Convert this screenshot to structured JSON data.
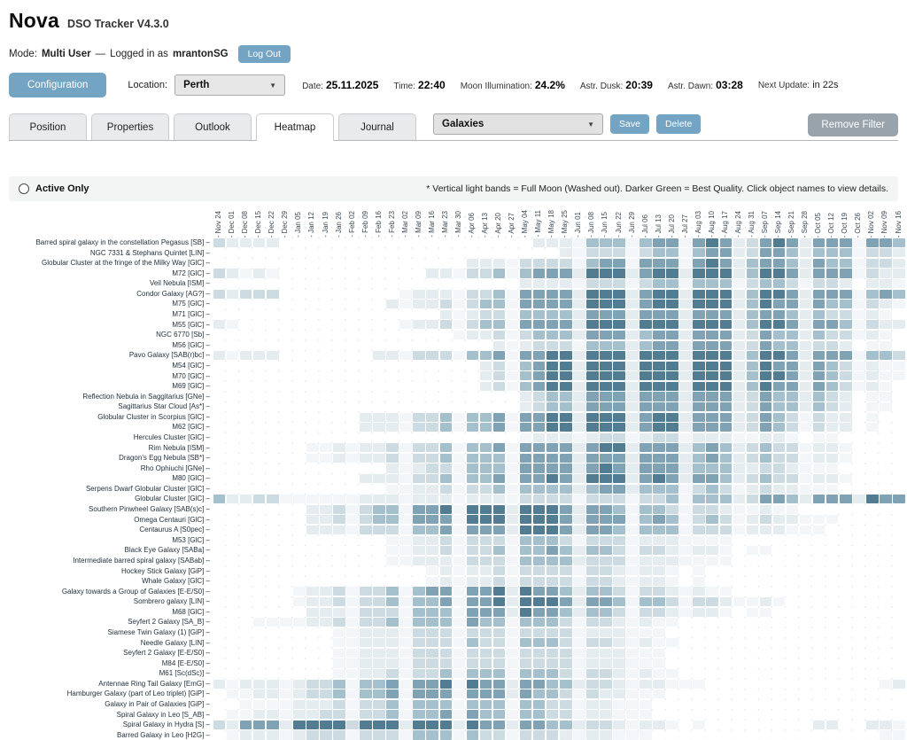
{
  "app": {
    "name": "Nova",
    "subtitle": "DSO Tracker V4.3.0"
  },
  "session": {
    "mode_label": "Mode:",
    "mode_value": "Multi User",
    "dash": "—",
    "logged_in_prefix": "Logged in as",
    "username": "mrantonSG",
    "logout_label": "Log Out"
  },
  "toolbar": {
    "configuration_label": "Configuration",
    "location_label": "Location:",
    "location_value": "Perth",
    "stats": [
      {
        "label": "Date:",
        "value": "25.11.2025",
        "bold": true
      },
      {
        "label": "Time:",
        "value": "22:40",
        "bold": true
      },
      {
        "label": "Moon Illumination:",
        "value": "24.2%",
        "bold": true
      },
      {
        "label": "Astr. Dusk:",
        "value": "20:39",
        "bold": true
      },
      {
        "label": "Astr. Dawn:",
        "value": "03:28",
        "bold": true
      },
      {
        "label": "Next Update:",
        "value": "in 22s",
        "bold": false
      }
    ]
  },
  "tabs": [
    {
      "label": "Position",
      "active": false
    },
    {
      "label": "Properties",
      "active": false
    },
    {
      "label": "Outlook",
      "active": false
    },
    {
      "label": "Heatmap",
      "active": true
    },
    {
      "label": "Journal",
      "active": false
    }
  ],
  "filter": {
    "preset_value": "Galaxies",
    "save_label": "Save",
    "delete_label": "Delete",
    "remove_filter_label": "Remove Filter"
  },
  "options_bar": {
    "active_only_label": "Active Only",
    "note": "* Vertical light bands = Full Moon (Washed out). Darker Green = Best Quality. Click object names to view details."
  },
  "chart_data": {
    "type": "heatmap",
    "value_scale": "0=not observable, 6=best quality (darkest green-blue); weekly columns Nov 2025 - Nov 2026; light vertical bands = full moon wash-out",
    "palette": {
      "0": "#ffffff",
      "1": "#f3f6f8",
      "2": "#e4ecf0",
      "3": "#ccdae2",
      "4": "#a5c0cd",
      "5": "#7fa3b5",
      "6": "#527c92"
    },
    "columns": [
      "Nov 24",
      "Dec 01",
      "Dec 08",
      "Dec 15",
      "Dec 22",
      "Dec 29",
      "Jan 05",
      "Jan 12",
      "Jan 19",
      "Jan 26",
      "Feb 02",
      "Feb 09",
      "Feb 16",
      "Feb 23",
      "Mar 02",
      "Mar 09",
      "Mar 16",
      "Mar 23",
      "Mar 30",
      "Apr 06",
      "Apr 13",
      "Apr 20",
      "Apr 27",
      "May 04",
      "May 11",
      "May 18",
      "May 25",
      "Jun 01",
      "Jun 08",
      "Jun 15",
      "Jun 22",
      "Jun 29",
      "Jul 06",
      "Jul 13",
      "Jul 20",
      "Jul 27",
      "Aug 03",
      "Aug 10",
      "Aug 17",
      "Aug 24",
      "Aug 31",
      "Sep 07",
      "Sep 14",
      "Sep 21",
      "Sep 28",
      "Oct 05",
      "Oct 12",
      "Oct 19",
      "Oct 26",
      "Nov 02",
      "Nov 09",
      "Nov 16"
    ],
    "rows": [
      {
        "label": "Barred spiral galaxy in the constellation Pegasus [SB]",
        "values": "3222200000000000000000002221444145515652356525551554"
      },
      {
        "label": "NGC 7331 & Stephans Quintet [LIN]",
        "values": "0000000000000000000000000021333134414552355424441332"
      },
      {
        "label": "Globular Cluster at the fringe of the Milky Way [GlC]",
        "values": "0000000000000000000222133331455155515652455425441332"
      },
      {
        "label": "M72 [GlC]",
        "values": "3212100000000000221334145552666256626662466525551322"
      },
      {
        "label": "Veil Nebula [ISM]",
        "values": "0000000000000000000000022221333134414441344313320221"
      },
      {
        "label": "Condor Galaxy [AG?]",
        "values": "3233300000000012221334155552666256626662466525551454"
      },
      {
        "label": "M75 [GlC]",
        "values": "0000000000000212231344155552666256626662465525441321"
      },
      {
        "label": "M71 [GlC]",
        "values": "0000000000000000021233144442555255525552455424331210"
      },
      {
        "label": "M55 [GlC]",
        "values": "2100000000000012231344155552666266626662466525541322"
      },
      {
        "label": "NGC 6770 [Sb]",
        "values": "0000000000000000001223134442555245525552354424331210"
      },
      {
        "label": "M56 [GlC]",
        "values": "0000000000000000000002123331444245525552354423320110"
      },
      {
        "label": "Pavo Galaxy [SAB(r)bc]",
        "values": "2122200000002213331445155662666266626662466525551443"
      },
      {
        "label": "M54 [GlC]",
        "values": "0000000000000000000023145662666266626662465525431211"
      },
      {
        "label": "M70 [GlC]",
        "values": "0000000000000000000023145662666266626662466525431211"
      },
      {
        "label": "M69 [GlC]",
        "values": "0000000000000000000023145662666266626662465525431210"
      },
      {
        "label": "Reflection Nebula in Saggitarius [GNe]",
        "values": "0000000000000000000000023442555255525552354424320110"
      },
      {
        "label": "Sagittarius Star Cloud [As*]",
        "values": "0000000000000000000000023442555255525552354424320110"
      },
      {
        "label": "Globular Cluster in Scorpius [GlC]",
        "values": "0000000000022213341445155662666256625552354313220100"
      },
      {
        "label": "M62 [GlC]",
        "values": "0000000000022213341445155662666256625552354313220100"
      },
      {
        "label": "Hercules Cluster [GlC]",
        "values": "0000000000000000000000012221233123312221122101100000"
      },
      {
        "label": "Rim Nebula [ISM]",
        "values": "0000000112122313341445155552566255524542343312210000"
      },
      {
        "label": "Dragon's Egg Nebula [SB*]",
        "values": "0000000112122313341444155552555255524542343312210000"
      },
      {
        "label": "Rho Ophiuchi [GNe]",
        "values": "0000000000000212331444155552565255524442233211100000"
      },
      {
        "label": "M80 [GlC]",
        "values": "0000000000022213341445155652666256525542343312210000"
      },
      {
        "label": "Serpens Dwarf Globular Cluster [GlC]",
        "values": "0000000000000112231334144442455244413431232211100000"
      },
      {
        "label": "Globular Cluster [GlC]",
        "values": "4223311111122212221222133331333133414442355425552655"
      },
      {
        "label": "Southern Pinwheel Galaxy [SAB(s)c]",
        "values": "0000000223134415561666266652554144313321121100000000"
      },
      {
        "label": "Omega Centauri [GlC]",
        "values": "0000000223134415551666266652555145413431232211100000"
      },
      {
        "label": "Centaurus A [S0pec]",
        "values": "0000000222133314451555266652554144413331222111000000"
      },
      {
        "label": "M53 [GlC]",
        "values": "0000000000000112231333144431333122211110000000000000"
      },
      {
        "label": "Black Eye Galaxy [SABa]",
        "values": "0000000000000112231334144542443133212210110000000000"
      },
      {
        "label": "Intermediate barred spiral galaxy [SABab]",
        "values": "0000000000000112221333144442333122211110000000000000"
      },
      {
        "label": "Hockey Stick Galaxy [GiP]",
        "values": "0000000000000000121223133331332122101000000000000000"
      },
      {
        "label": "Whale Galaxy [GlC]",
        "values": "0000000000000000121223133331332122101000000000000000"
      },
      {
        "label": "Galaxy towards a Group of Galaxies [E-E/S0]",
        "values": "0000001223133414551556265542443133212110000000000000"
      },
      {
        "label": "Sombrero galaxy [LIN]",
        "values": "0000001223133414451556266652554144313321121000000000"
      },
      {
        "label": "M68 [GlC]",
        "values": "0000000222133314441555265542443133212210110000000000"
      },
      {
        "label": "Seyfert 2 Galaxy [SA_B]",
        "values": "0001111223133414441544144431332121100000000000000000"
      },
      {
        "label": "Siamese Twin Galaxy (1) [GiP]",
        "values": "0000000001122213331333133331222111000000000000000000"
      },
      {
        "label": "Needle Galaxy [LIN]",
        "values": "0000000001122213331433144431332121100000000000000000"
      },
      {
        "label": "Seyfert 2 Galaxy [E-E/S0]",
        "values": "0000000001122213331333133331222111000000000000000000"
      },
      {
        "label": "M84 [E-E/S0]",
        "values": "0000000001122213331333133331222111000000000000000000"
      },
      {
        "label": "M61 [Sc(dSc)]",
        "values": "0000000001122313341444144431332121100000000000000000"
      },
      {
        "label": "Antennae Ring Tail Galaxy [EmG]",
        "values": "2122212334144515561655255442332122111000000000000012"
      },
      {
        "label": "Hamburger Galaxy (part of Leo triplet) [GiP]",
        "values": "0112212334144515551555254431322111000000000000000000"
      },
      {
        "label": "Galaxy in Pair of Galaxies [GiP]",
        "values": "0011112223133414441444144331221110000000000000000000"
      },
      {
        "label": "Spiral Galaxy in Leo [S_AB]",
        "values": "0112212233133414451544144331221110000000000000000000"
      },
      {
        "label": "Spiral Galaxy in Hydra [S]",
        "values": "3255526666366626662655255442332122101000000002200221"
      },
      {
        "label": "Barred Galaxy in Leo [H2G]",
        "values": "0122212333133314441433133321221110000000000000000011"
      }
    ]
  }
}
